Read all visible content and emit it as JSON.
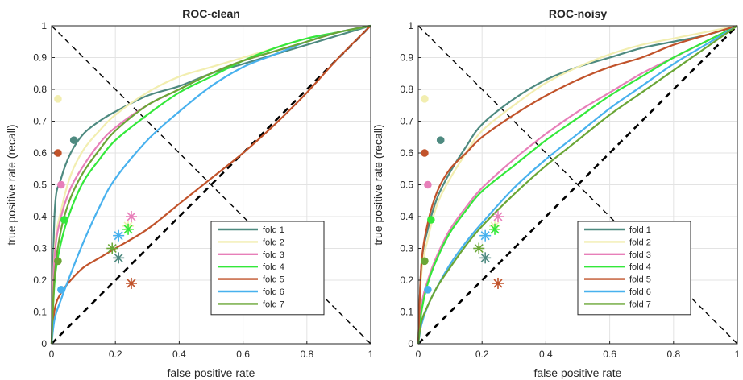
{
  "chart_data": [
    {
      "type": "line",
      "title": "ROC-clean",
      "xlabel": "false positive rate",
      "ylabel": "true positive rate (recall)",
      "xlim": [
        0,
        1
      ],
      "ylim": [
        0,
        1
      ],
      "xticks": [
        "0",
        "0.2",
        "0.4",
        "0.6",
        "0.8",
        "1"
      ],
      "yticks": [
        "0",
        "0.1",
        "0.2",
        "0.3",
        "0.4",
        "0.5",
        "0.6",
        "0.7",
        "0.8",
        "0.9",
        "1"
      ],
      "grid": true,
      "legend_position": "bottom-right",
      "reference_lines": [
        {
          "style": "dashed",
          "color": "#000000",
          "x": [
            0,
            1
          ],
          "y": [
            1,
            0
          ]
        },
        {
          "style": "dashed-bold",
          "color": "#000000",
          "x": [
            0,
            1
          ],
          "y": [
            0,
            1
          ]
        }
      ],
      "series": [
        {
          "name": "fold 1",
          "color": "#4e8a80",
          "x": [
            0,
            0.01,
            0.03,
            0.06,
            0.1,
            0.15,
            0.2,
            0.3,
            0.4,
            0.5,
            0.6,
            0.7,
            0.8,
            0.9,
            1
          ],
          "y": [
            0,
            0.42,
            0.52,
            0.6,
            0.66,
            0.7,
            0.73,
            0.78,
            0.81,
            0.85,
            0.88,
            0.91,
            0.94,
            0.97,
            1
          ],
          "marker_dot": [
            0.07,
            0.64
          ],
          "marker_star": [
            0.21,
            0.27
          ]
        },
        {
          "name": "fold 2",
          "color": "#f2eeb0",
          "x": [
            0,
            0.01,
            0.03,
            0.06,
            0.1,
            0.15,
            0.2,
            0.3,
            0.4,
            0.5,
            0.6,
            0.7,
            0.8,
            0.9,
            1
          ],
          "y": [
            0,
            0.3,
            0.42,
            0.53,
            0.61,
            0.67,
            0.72,
            0.79,
            0.84,
            0.87,
            0.9,
            0.93,
            0.96,
            0.98,
            1
          ],
          "marker_dot": [
            0.02,
            0.77
          ],
          "marker_star": [
            0.24,
            0.37
          ]
        },
        {
          "name": "fold 3",
          "color": "#e77fb9",
          "x": [
            0,
            0.01,
            0.03,
            0.06,
            0.1,
            0.15,
            0.2,
            0.3,
            0.4,
            0.5,
            0.6,
            0.7,
            0.8,
            0.9,
            1
          ],
          "y": [
            0,
            0.28,
            0.4,
            0.49,
            0.56,
            0.63,
            0.68,
            0.75,
            0.8,
            0.85,
            0.89,
            0.92,
            0.95,
            0.98,
            1
          ],
          "marker_dot": [
            0.03,
            0.5
          ],
          "marker_star": [
            0.25,
            0.4
          ]
        },
        {
          "name": "fold 4",
          "color": "#33e83a",
          "x": [
            0,
            0.01,
            0.03,
            0.06,
            0.1,
            0.15,
            0.2,
            0.3,
            0.4,
            0.5,
            0.6,
            0.7,
            0.8,
            0.9,
            1
          ],
          "y": [
            0,
            0.2,
            0.32,
            0.42,
            0.51,
            0.58,
            0.64,
            0.72,
            0.79,
            0.84,
            0.89,
            0.93,
            0.96,
            0.98,
            1
          ],
          "marker_dot": [
            0.04,
            0.39
          ],
          "marker_star": [
            0.24,
            0.36
          ]
        },
        {
          "name": "fold 5",
          "color": "#c1532b",
          "x": [
            0,
            0.01,
            0.03,
            0.06,
            0.1,
            0.15,
            0.2,
            0.3,
            0.4,
            0.5,
            0.6,
            0.7,
            0.8,
            0.9,
            1
          ],
          "y": [
            0,
            0.11,
            0.16,
            0.2,
            0.24,
            0.27,
            0.3,
            0.36,
            0.44,
            0.52,
            0.6,
            0.69,
            0.79,
            0.9,
            1
          ],
          "marker_dot": [
            0.02,
            0.6
          ],
          "marker_star": [
            0.25,
            0.19
          ]
        },
        {
          "name": "fold 6",
          "color": "#48b1ee",
          "x": [
            0,
            0.01,
            0.03,
            0.06,
            0.1,
            0.15,
            0.2,
            0.3,
            0.4,
            0.5,
            0.6,
            0.7,
            0.8,
            0.9,
            1
          ],
          "y": [
            0,
            0.08,
            0.14,
            0.22,
            0.32,
            0.43,
            0.52,
            0.64,
            0.73,
            0.81,
            0.87,
            0.91,
            0.95,
            0.98,
            1
          ],
          "marker_dot": [
            0.03,
            0.17
          ],
          "marker_star": [
            0.21,
            0.34
          ]
        },
        {
          "name": "fold 7",
          "color": "#6aa636",
          "x": [
            0,
            0.01,
            0.03,
            0.06,
            0.1,
            0.15,
            0.2,
            0.3,
            0.4,
            0.5,
            0.6,
            0.7,
            0.8,
            0.9,
            1
          ],
          "y": [
            0,
            0.22,
            0.36,
            0.46,
            0.54,
            0.61,
            0.67,
            0.75,
            0.8,
            0.85,
            0.89,
            0.92,
            0.95,
            0.98,
            1
          ],
          "marker_dot": [
            0.02,
            0.26
          ],
          "marker_star": [
            0.19,
            0.3
          ]
        }
      ]
    },
    {
      "type": "line",
      "title": "ROC-noisy",
      "xlabel": "false positive rate",
      "ylabel": "true positive rate (recall)",
      "xlim": [
        0,
        1
      ],
      "ylim": [
        0,
        1
      ],
      "xticks": [
        "0",
        "0.2",
        "0.4",
        "0.6",
        "0.8",
        "1"
      ],
      "yticks": [
        "0",
        "0.1",
        "0.2",
        "0.3",
        "0.4",
        "0.5",
        "0.6",
        "0.7",
        "0.8",
        "0.9",
        "1"
      ],
      "grid": true,
      "legend_position": "bottom-right",
      "reference_lines": [
        {
          "style": "dashed",
          "color": "#000000",
          "x": [
            0,
            1
          ],
          "y": [
            1,
            0
          ]
        },
        {
          "style": "dashed-bold",
          "color": "#000000",
          "x": [
            0,
            1
          ],
          "y": [
            0,
            1
          ]
        }
      ],
      "series": [
        {
          "name": "fold 1",
          "color": "#4e8a80",
          "x": [
            0,
            0.01,
            0.03,
            0.06,
            0.1,
            0.15,
            0.2,
            0.3,
            0.4,
            0.5,
            0.6,
            0.7,
            0.8,
            0.9,
            1
          ],
          "y": [
            0,
            0.25,
            0.36,
            0.46,
            0.54,
            0.62,
            0.69,
            0.77,
            0.83,
            0.87,
            0.9,
            0.93,
            0.95,
            0.97,
            1
          ],
          "marker_dot": [
            0.07,
            0.64
          ],
          "marker_star": [
            0.21,
            0.27
          ]
        },
        {
          "name": "fold 2",
          "color": "#f2eeb0",
          "x": [
            0,
            0.01,
            0.03,
            0.06,
            0.1,
            0.15,
            0.2,
            0.3,
            0.4,
            0.5,
            0.6,
            0.7,
            0.8,
            0.9,
            1
          ],
          "y": [
            0,
            0.22,
            0.33,
            0.44,
            0.52,
            0.6,
            0.67,
            0.75,
            0.82,
            0.87,
            0.91,
            0.94,
            0.96,
            0.98,
            1
          ],
          "marker_dot": [
            0.02,
            0.77
          ],
          "marker_star": [
            0.24,
            0.37
          ]
        },
        {
          "name": "fold 3",
          "color": "#e77fb9",
          "x": [
            0,
            0.01,
            0.03,
            0.06,
            0.1,
            0.15,
            0.2,
            0.3,
            0.4,
            0.5,
            0.6,
            0.7,
            0.8,
            0.9,
            1
          ],
          "y": [
            0,
            0.12,
            0.2,
            0.28,
            0.36,
            0.43,
            0.49,
            0.58,
            0.66,
            0.73,
            0.79,
            0.85,
            0.9,
            0.95,
            1
          ],
          "marker_dot": [
            0.03,
            0.5
          ],
          "marker_star": [
            0.25,
            0.4
          ]
        },
        {
          "name": "fold 4",
          "color": "#33e83a",
          "x": [
            0,
            0.01,
            0.03,
            0.06,
            0.1,
            0.15,
            0.2,
            0.3,
            0.4,
            0.5,
            0.6,
            0.7,
            0.8,
            0.9,
            1
          ],
          "y": [
            0,
            0.1,
            0.19,
            0.27,
            0.35,
            0.42,
            0.48,
            0.56,
            0.64,
            0.71,
            0.78,
            0.84,
            0.9,
            0.95,
            1
          ],
          "marker_dot": [
            0.04,
            0.39
          ],
          "marker_star": [
            0.24,
            0.36
          ]
        },
        {
          "name": "fold 5",
          "color": "#c1532b",
          "x": [
            0,
            0.01,
            0.03,
            0.06,
            0.1,
            0.15,
            0.2,
            0.3,
            0.4,
            0.5,
            0.6,
            0.7,
            0.8,
            0.9,
            1
          ],
          "y": [
            0,
            0.25,
            0.38,
            0.48,
            0.55,
            0.6,
            0.65,
            0.72,
            0.78,
            0.83,
            0.87,
            0.9,
            0.94,
            0.97,
            1
          ],
          "marker_dot": [
            0.02,
            0.6
          ],
          "marker_star": [
            0.25,
            0.19
          ]
        },
        {
          "name": "fold 6",
          "color": "#48b1ee",
          "x": [
            0,
            0.01,
            0.03,
            0.06,
            0.1,
            0.15,
            0.2,
            0.3,
            0.4,
            0.5,
            0.6,
            0.7,
            0.8,
            0.9,
            1
          ],
          "y": [
            0,
            0.06,
            0.12,
            0.18,
            0.25,
            0.32,
            0.38,
            0.49,
            0.58,
            0.66,
            0.74,
            0.81,
            0.88,
            0.94,
            1
          ],
          "marker_dot": [
            0.03,
            0.17
          ],
          "marker_star": [
            0.21,
            0.34
          ]
        },
        {
          "name": "fold 7",
          "color": "#6aa636",
          "x": [
            0,
            0.01,
            0.03,
            0.06,
            0.1,
            0.15,
            0.2,
            0.3,
            0.4,
            0.5,
            0.6,
            0.7,
            0.8,
            0.9,
            1
          ],
          "y": [
            0,
            0.07,
            0.12,
            0.18,
            0.24,
            0.31,
            0.37,
            0.47,
            0.56,
            0.64,
            0.72,
            0.79,
            0.86,
            0.93,
            1
          ],
          "marker_dot": [
            0.02,
            0.26
          ],
          "marker_star": [
            0.19,
            0.3
          ]
        }
      ]
    }
  ]
}
